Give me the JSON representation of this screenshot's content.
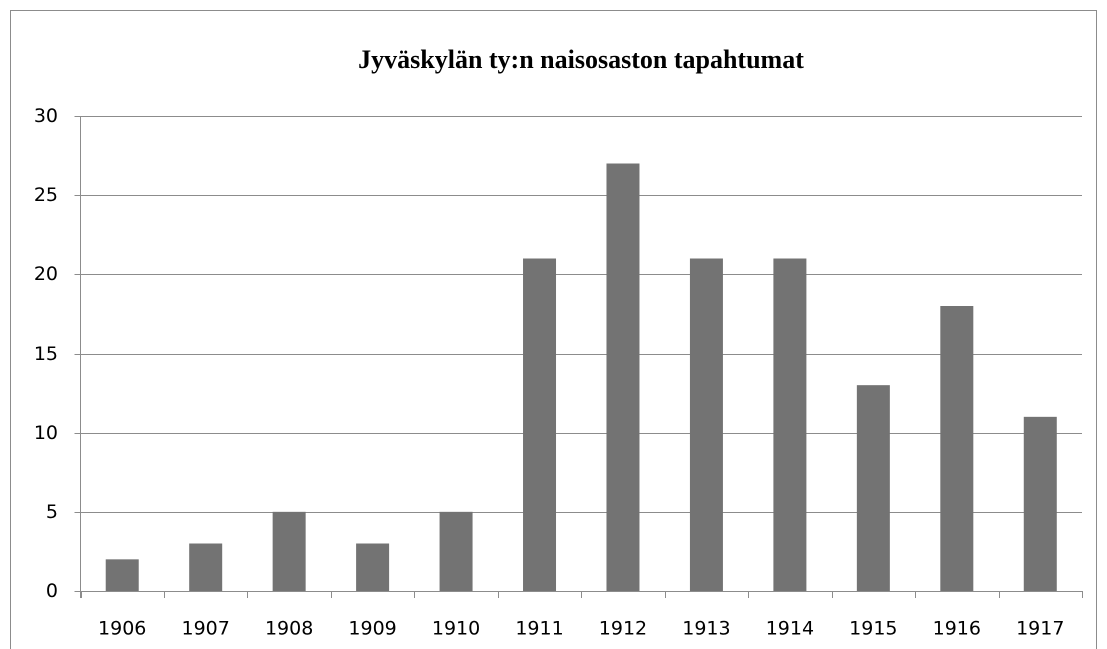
{
  "chart_data": {
    "type": "bar",
    "title": "Jyväskylän ty:n naisosaston tapahtumat",
    "categories": [
      "1906",
      "1907",
      "1908",
      "1909",
      "1910",
      "1911",
      "1912",
      "1913",
      "1914",
      "1915",
      "1916",
      "1917"
    ],
    "values": [
      2,
      3,
      5,
      3,
      5,
      21,
      27,
      21,
      21,
      13,
      18,
      11
    ],
    "color": "#737373",
    "ylim": [
      0,
      30
    ],
    "yticks": [
      0,
      5,
      10,
      15,
      20,
      25,
      30
    ],
    "grid": true
  }
}
